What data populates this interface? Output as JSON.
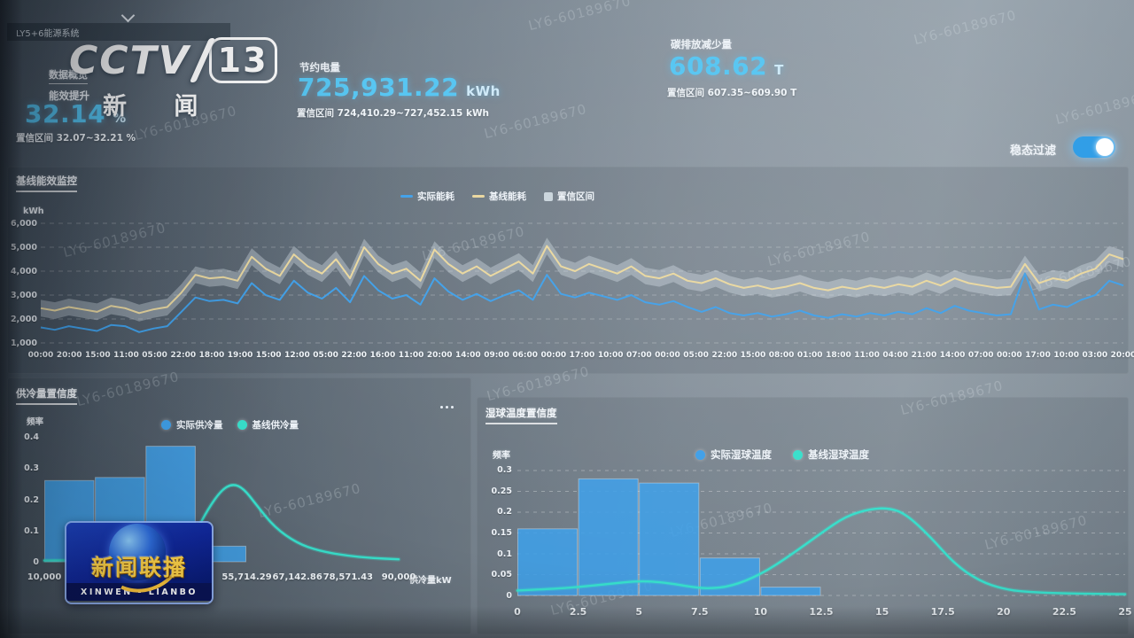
{
  "watermark": "LY6-60189670",
  "broadcast": {
    "cctv": "CCTV",
    "channel": "13",
    "channel_name": "新 闻",
    "program": "新闻联播",
    "program_sub": "XINWEN - LIANBO"
  },
  "header": {
    "system": "LY5+6能源系统",
    "overview": "数据概览",
    "kpi_efficiency": {
      "label": "能效提升",
      "value": "32.14",
      "unit": "%",
      "ci": "置信区间 32.07~32.21 %"
    },
    "kpi_energy": {
      "label": "节约电量",
      "value": "725,931.22",
      "unit": "kWh",
      "ci": "置信区间 724,410.29~727,452.15 kWh"
    },
    "kpi_carbon": {
      "label": "碳排放减少量",
      "value": "608.62",
      "unit": "T",
      "ci": "置信区间 607.35~609.90 T"
    },
    "toggle_label": "稳态过滤",
    "toggle_state": "on"
  },
  "chart_data": [
    {
      "type": "line",
      "title": "基线能效监控",
      "ylabel": "kWh",
      "yticks": [
        "6,000",
        "5,000",
        "4,000",
        "3,000",
        "2,000",
        "1,000"
      ],
      "ylim": [
        1000,
        6000
      ],
      "x": [
        "00:00",
        "20:00",
        "15:00",
        "11:00",
        "05:00",
        "22:00",
        "18:00",
        "19:00",
        "15:00",
        "12:00",
        "05:00",
        "22:00",
        "16:00",
        "11:00",
        "20:00",
        "14:00",
        "09:00",
        "06:00",
        "00:00",
        "17:00",
        "10:00",
        "07:00",
        "00:00",
        "05:00",
        "22:00",
        "15:00",
        "08:00",
        "01:00",
        "18:00",
        "11:00",
        "04:00",
        "21:00",
        "14:00",
        "07:00",
        "00:00",
        "17:00",
        "10:00",
        "03:00",
        "20:00"
      ],
      "legend": [
        {
          "label": "实际能耗",
          "color": "#3f9fe8",
          "marker": "line"
        },
        {
          "label": "基线能耗",
          "color": "#e9d79e",
          "marker": "line"
        },
        {
          "label": "置信区间",
          "color": "#c9d4dc",
          "marker": "band"
        }
      ],
      "series": [
        {
          "name": "基线能耗",
          "color": "#e9d79e",
          "values": [
            2450,
            2350,
            2500,
            2400,
            2300,
            2550,
            2450,
            2250,
            2400,
            2500,
            3100,
            3850,
            3700,
            3750,
            3600,
            4600,
            4100,
            3800,
            4700,
            4200,
            3900,
            4500,
            3700,
            5000,
            4300,
            3900,
            4100,
            3600,
            4900,
            4300,
            3900,
            4200,
            3800,
            4100,
            4400,
            3900,
            5050,
            4200,
            4000,
            4300,
            4100,
            3900,
            4200,
            3800,
            3700,
            3900,
            3600,
            3500,
            3700,
            3450,
            3300,
            3400,
            3250,
            3350,
            3500,
            3300,
            3200,
            3350,
            3250,
            3400,
            3300,
            3450,
            3350,
            3600,
            3400,
            3700,
            3500,
            3400,
            3300,
            3350,
            4300,
            3500,
            3700,
            3600,
            3900,
            4100,
            4700,
            4500
          ]
        },
        {
          "name": "实际能耗",
          "color": "#3f9fe8",
          "values": [
            1650,
            1550,
            1700,
            1600,
            1500,
            1750,
            1700,
            1450,
            1600,
            1700,
            2300,
            2900,
            2750,
            2800,
            2650,
            3500,
            3000,
            2800,
            3600,
            3100,
            2850,
            3300,
            2700,
            3800,
            3200,
            2850,
            3000,
            2600,
            3700,
            3150,
            2800,
            3050,
            2750,
            3000,
            3200,
            2800,
            3850,
            3050,
            2900,
            3100,
            2950,
            2800,
            3000,
            2700,
            2600,
            2750,
            2500,
            2300,
            2500,
            2250,
            2150,
            2250,
            2100,
            2200,
            2350,
            2150,
            2050,
            2200,
            2100,
            2250,
            2150,
            2300,
            2200,
            2450,
            2250,
            2550,
            2350,
            2250,
            2150,
            2200,
            3900,
            2400,
            2600,
            2500,
            2800,
            3000,
            3600,
            3400
          ]
        }
      ],
      "band": {
        "series": "基线能耗",
        "half_width": 350,
        "color": "rgba(216,226,234,0.38)"
      }
    },
    {
      "type": "histogram+line",
      "title": "供冷量置信度",
      "ylabel": "频率",
      "xlabel": "供冷量kW",
      "yticks": [
        0.4,
        0.3,
        0.2,
        0.1,
        0
      ],
      "ymax": 0.4,
      "xticks": [
        "10,000",
        "55,714.29",
        "67,142.86",
        "78,571.43",
        "90,000"
      ],
      "xlim": [
        10000,
        90000
      ],
      "grid": false,
      "legend": [
        {
          "label": "实际供冷量",
          "color": "#3f9fe8",
          "marker": "dot"
        },
        {
          "label": "基线供冷量",
          "color": "#37dfcb",
          "marker": "dot"
        }
      ],
      "bars": {
        "name": "实际供冷量",
        "color": "#3f9fe8",
        "bin_start": 10000,
        "bin_width": 11428.57,
        "heights": [
          0.26,
          0.27,
          0.37,
          0.05
        ]
      },
      "curve": {
        "name": "基线供冷量",
        "color": "#37dfcb",
        "x": [
          10000,
          25000,
          34000,
          40000,
          44000,
          47000,
          50000,
          52500,
          55000,
          58000,
          62000,
          67000,
          72000,
          78000,
          84000,
          90000
        ],
        "y": [
          0.004,
          0.006,
          0.012,
          0.03,
          0.09,
          0.17,
          0.23,
          0.25,
          0.235,
          0.18,
          0.11,
          0.06,
          0.035,
          0.02,
          0.012,
          0.008
        ]
      }
    },
    {
      "type": "histogram+line",
      "title": "湿球温度置信度",
      "ylabel": "频率",
      "xlabel": "",
      "yticks": [
        0.3,
        0.25,
        0.2,
        0.15,
        0.1,
        0.05,
        0
      ],
      "ymax": 0.3,
      "xticks": [
        "0",
        "2.5",
        "5",
        "7.5",
        "10",
        "12.5",
        "15",
        "17.5",
        "20",
        "22.5",
        "25"
      ],
      "xlim": [
        0,
        25
      ],
      "grid": true,
      "legend": [
        {
          "label": "实际湿球温度",
          "color": "#3f9fe8",
          "marker": "dot"
        },
        {
          "label": "基线湿球温度",
          "color": "#37dfcb",
          "marker": "dot"
        }
      ],
      "bars": {
        "name": "实际湿球温度",
        "color": "#3f9fe8",
        "bin_start": 0,
        "bin_width": 2.5,
        "heights": [
          0.16,
          0.28,
          0.27,
          0.09,
          0.02
        ]
      },
      "curve": {
        "name": "基线湿球温度",
        "color": "#37dfcb",
        "x": [
          0,
          1.2,
          2.5,
          3.8,
          5,
          6,
          7,
          7.8,
          8.8,
          10,
          11.2,
          12.5,
          13.5,
          14.5,
          15.3,
          16,
          17,
          18,
          19,
          20,
          21,
          22.5,
          24,
          25
        ],
        "y": [
          0.012,
          0.015,
          0.02,
          0.028,
          0.035,
          0.032,
          0.022,
          0.016,
          0.022,
          0.05,
          0.095,
          0.15,
          0.19,
          0.208,
          0.21,
          0.195,
          0.14,
          0.075,
          0.035,
          0.015,
          0.008,
          0.005,
          0.004,
          0.003
        ]
      }
    }
  ]
}
